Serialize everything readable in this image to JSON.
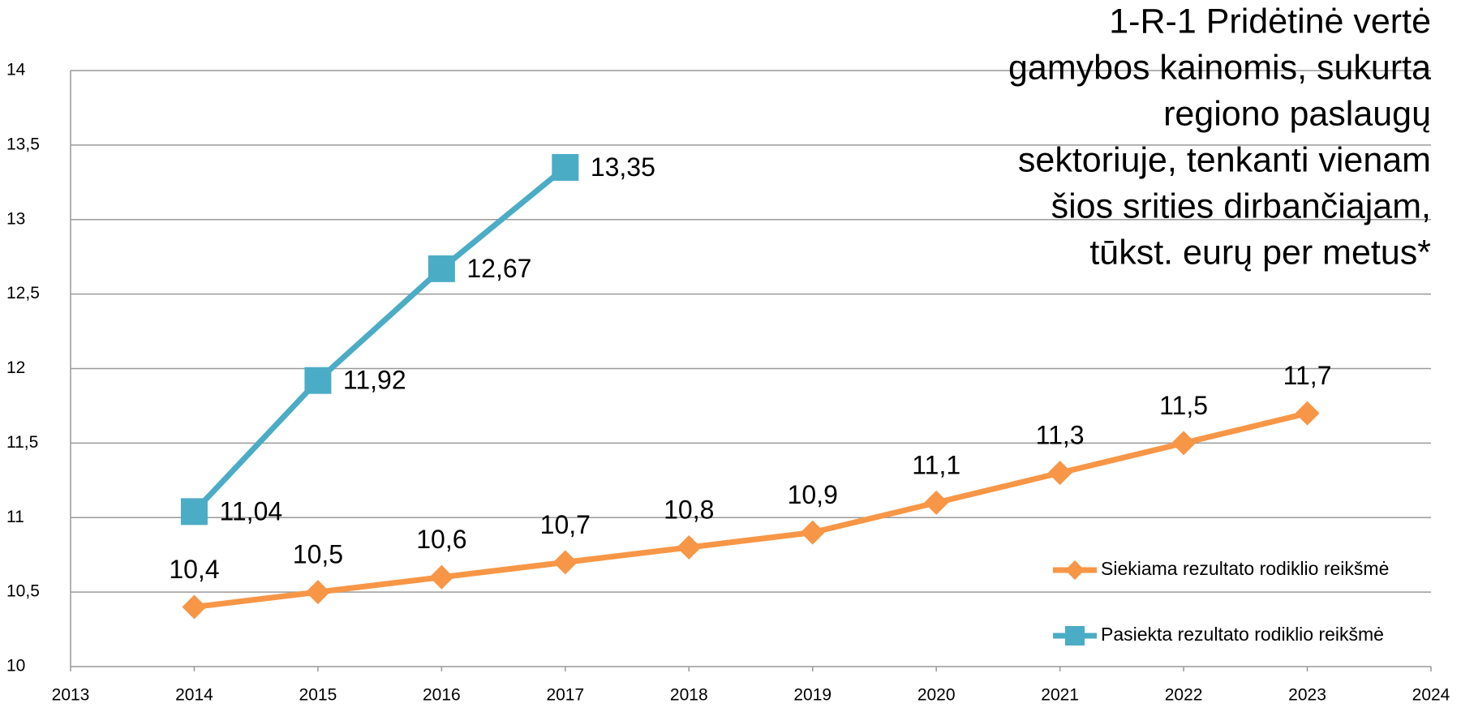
{
  "chart_data": {
    "type": "line",
    "title": [
      "1-R-1  Pridėtinė vertė",
      "gamybos kainomis, sukurta",
      "regiono paslaugų",
      "sektoriuje, tenkanti vienam",
      "šios srities dirbančiajam,",
      "tūkst. eurų per metus*"
    ],
    "x": [
      2014,
      2015,
      2016,
      2017,
      2018,
      2019,
      2020,
      2021,
      2022,
      2023
    ],
    "series": [
      {
        "name": "Siekiama rezultato rodiklio reikšmė",
        "color": "#f79646",
        "marker": "diamond",
        "values": [
          10.4,
          10.5,
          10.6,
          10.7,
          10.8,
          10.9,
          11.1,
          11.3,
          11.5,
          11.7
        ],
        "value_labels": [
          "10,4",
          "10,5",
          "10,6",
          "10,7",
          "10,8",
          "10,9",
          "11,1",
          "11,3",
          "11,5",
          "11,7"
        ]
      },
      {
        "name": "Pasiekta rezultato rodiklio reikšmė",
        "color": "#4bacc6",
        "marker": "square",
        "values": [
          11.04,
          11.92,
          12.67,
          13.35,
          null,
          null,
          null,
          null,
          null,
          null
        ],
        "value_labels": [
          "11,04",
          "11,92",
          "12,67",
          "13,35",
          null,
          null,
          null,
          null,
          null,
          null
        ]
      }
    ],
    "xlim": [
      2013,
      2024
    ],
    "xticks": [
      2013,
      2014,
      2015,
      2016,
      2017,
      2018,
      2019,
      2020,
      2021,
      2022,
      2023,
      2024
    ],
    "ylim": [
      10,
      14
    ],
    "yticks": [
      10,
      {
        "value": 10.5,
        "label": "10,5"
      },
      11,
      {
        "value": 11.5,
        "label": "11,5"
      },
      12,
      {
        "value": 12.5,
        "label": "12,5"
      },
      13,
      {
        "value": 13.5,
        "label": "13,5"
      },
      14
    ],
    "grid": true,
    "legend": "right"
  }
}
